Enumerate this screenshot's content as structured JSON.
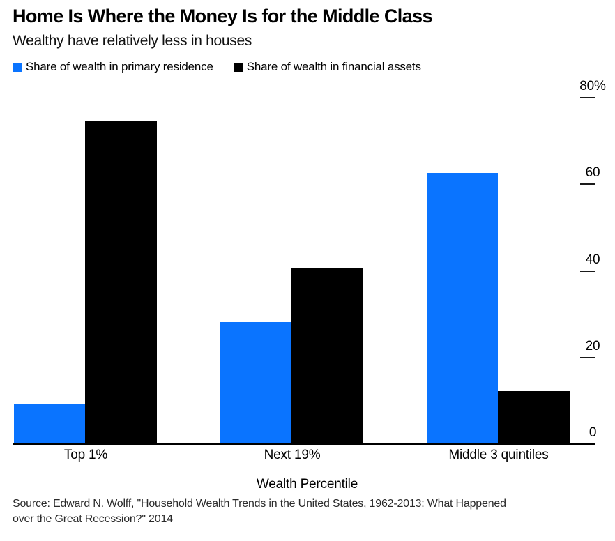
{
  "header": {
    "title": "Home Is Where the Money Is for the Middle Class",
    "subtitle": "Wealthy have relatively less in houses"
  },
  "legend": {
    "items": [
      {
        "label": "Share of wealth in primary residence",
        "color": "#0a74ff"
      },
      {
        "label": "Share of wealth in financial assets",
        "color": "#000000"
      }
    ]
  },
  "chart_data": {
    "type": "bar",
    "title": "Home Is Where the Money Is for the Middle Class",
    "subtitle": "Wealthy have relatively less in houses",
    "categories": [
      "Top 1%",
      "Next 19%",
      "Middle 3 quintiles"
    ],
    "series": [
      {
        "name": "Share of wealth in primary residence",
        "color": "#0a74ff",
        "values": [
          9,
          28,
          62.5
        ]
      },
      {
        "name": "Share of wealth in financial assets",
        "color": "#000000",
        "values": [
          74.5,
          40.5,
          12
        ]
      }
    ],
    "unit": "%",
    "xlabel": "Wealth Percentile",
    "ylabel": "",
    "ylim": [
      0,
      80
    ],
    "y_ticks": [
      {
        "value": 80,
        "label": "80%"
      },
      {
        "value": 60,
        "label": "60"
      },
      {
        "value": 40,
        "label": "40"
      },
      {
        "value": 20,
        "label": "20"
      },
      {
        "value": 0,
        "label": "0"
      }
    ],
    "grid": false,
    "legend_position": "top"
  },
  "source": {
    "lines": [
      "Source: Edward N. Wolff, \"Household Wealth Trends in the United States, 1962-2013: What Happened",
      "over the Great Recession?\" 2014"
    ]
  }
}
